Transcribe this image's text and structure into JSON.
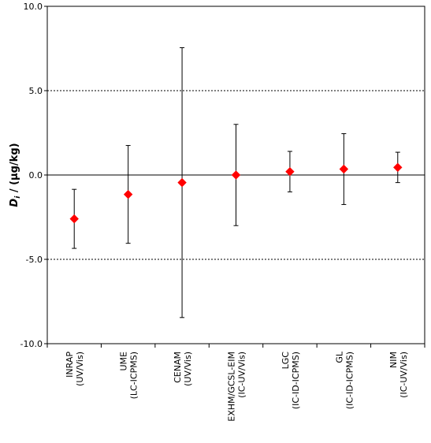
{
  "chart_data": {
    "type": "scatter",
    "title": "",
    "xlabel": "",
    "ylabel": {
      "symbol": "D",
      "subscript": "i",
      "rest": " / (µg/kg)"
    },
    "ylim": [
      -10,
      10
    ],
    "yticks": [
      "-10.0",
      "-5.0",
      "0.0",
      "5.0",
      "10.0"
    ],
    "reference_lines": [
      -5,
      0,
      5
    ],
    "grid": false,
    "legend": "none",
    "marker": "diamond",
    "marker_color": "#ff0000",
    "error_bar_color": "#000000",
    "categories": [
      {
        "line1": "INRAP",
        "line2": "(UV/Vis)"
      },
      {
        "line1": "UME",
        "line2": "(LC-ICPMS)"
      },
      {
        "line1": "CENAM",
        "line2": "(UV/Vis)"
      },
      {
        "line1": "EXHM/GCSL-EIM",
        "line2": "(IC-UV/Vis)"
      },
      {
        "line1": "LGC",
        "line2": "(IC-ID-ICPMS)"
      },
      {
        "line1": "GL",
        "line2": "(IC-ID-ICPMS)"
      },
      {
        "line1": "NIM",
        "line2": "(IC-UV/Vis)"
      }
    ],
    "points": [
      {
        "y": -2.6,
        "upper": -0.85,
        "lower": -4.35
      },
      {
        "y": -1.15,
        "upper": 1.75,
        "lower": -4.05
      },
      {
        "y": -0.45,
        "upper": 7.55,
        "lower": -8.45
      },
      {
        "y": 0.0,
        "upper": 3.0,
        "lower": -3.0
      },
      {
        "y": 0.2,
        "upper": 1.4,
        "lower": -1.0
      },
      {
        "y": 0.35,
        "upper": 2.45,
        "lower": -1.75
      },
      {
        "y": 0.45,
        "upper": 1.35,
        "lower": -0.45
      }
    ]
  }
}
